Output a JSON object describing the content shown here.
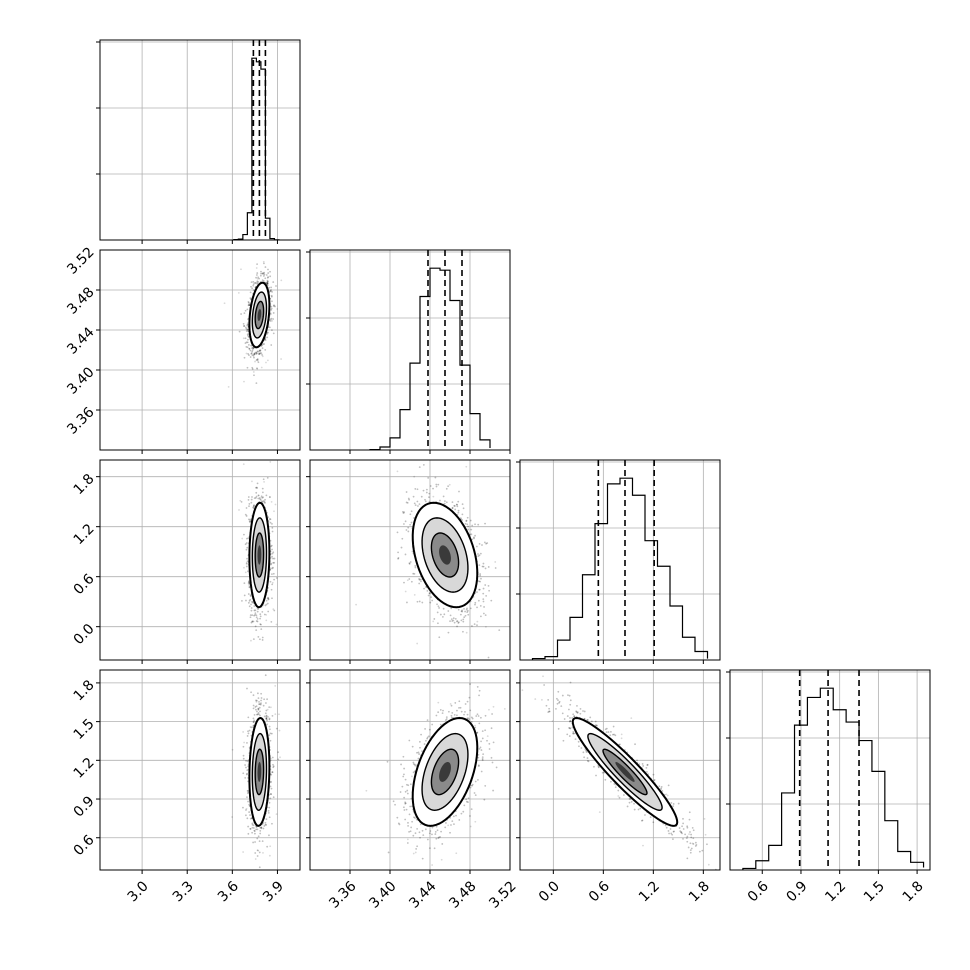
{
  "figure": {
    "type": "corner-plot",
    "panel_grid": 4,
    "colors": {
      "ink": "#000000",
      "grid": "#b0b0b0",
      "scatter": "#000000",
      "background": "#ffffff"
    }
  },
  "chart_data": [
    {
      "id": "hist-0",
      "type": "histogram",
      "xlim": [
        2.72,
        4.05
      ],
      "bins": [
        3.61,
        3.64,
        3.67,
        3.7,
        3.73,
        3.76,
        3.79,
        3.82,
        3.85,
        3.88,
        3.91
      ],
      "counts": [
        2,
        5,
        30,
        150,
        1000,
        980,
        940,
        120,
        8,
        1
      ],
      "quantile_lines": [
        3.74,
        3.78,
        3.82
      ],
      "grid": true
    },
    {
      "id": "hist-1",
      "type": "histogram",
      "xlim": [
        3.32,
        3.52
      ],
      "bins": [
        3.38,
        3.39,
        3.4,
        3.41,
        3.42,
        3.43,
        3.44,
        3.45,
        3.46,
        3.47,
        3.48,
        3.49,
        3.5
      ],
      "counts": [
        2,
        15,
        60,
        200,
        430,
        760,
        900,
        890,
        740,
        420,
        180,
        50,
        10
      ],
      "quantile_lines": [
        3.438,
        3.455,
        3.472
      ],
      "grid": true,
      "x_ticks": [
        "3.36",
        "3.40",
        "3.44",
        "3.48",
        "3.52"
      ]
    },
    {
      "id": "hist-2",
      "type": "histogram",
      "xlim": [
        -0.4,
        2.0
      ],
      "bins": [
        -0.25,
        -0.1,
        0.05,
        0.2,
        0.35,
        0.5,
        0.65,
        0.8,
        0.95,
        1.1,
        1.25,
        1.4,
        1.55,
        1.7,
        1.85
      ],
      "counts": [
        5,
        12,
        70,
        150,
        300,
        480,
        620,
        640,
        580,
        420,
        330,
        190,
        80,
        30,
        5
      ],
      "quantile_lines": [
        0.54,
        0.86,
        1.21
      ],
      "grid": true,
      "x_ticks": [
        "0.0",
        "0.6",
        "1.2",
        "1.8"
      ]
    },
    {
      "id": "hist-3",
      "type": "histogram",
      "xlim": [
        0.35,
        1.9
      ],
      "bins": [
        0.45,
        0.55,
        0.65,
        0.75,
        0.85,
        0.95,
        1.05,
        1.15,
        1.25,
        1.35,
        1.45,
        1.55,
        1.65,
        1.75,
        1.85
      ],
      "counts": [
        5,
        30,
        80,
        250,
        470,
        560,
        590,
        520,
        480,
        420,
        320,
        160,
        60,
        25,
        8
      ],
      "quantile_lines": [
        0.89,
        1.11,
        1.35
      ],
      "grid": true,
      "x_ticks": [
        "0.6",
        "0.9",
        "1.2",
        "1.5",
        "1.8"
      ]
    },
    {
      "id": "scatter-1-0",
      "type": "scatter-contour",
      "x_param": 0,
      "y_param": 1,
      "xlim": [
        2.72,
        4.05
      ],
      "ylim": [
        3.32,
        3.52
      ],
      "mean": [
        3.78,
        3.455
      ],
      "sd": [
        0.035,
        0.017
      ],
      "rho": 0.3,
      "contour_levels": 3,
      "y_ticks": [
        "3.52",
        "3.48",
        "3.44",
        "3.40",
        "3.36"
      ]
    },
    {
      "id": "scatter-2-0",
      "type": "scatter-contour",
      "x_param": 0,
      "y_param": 2,
      "xlim": [
        2.72,
        4.05
      ],
      "ylim": [
        -0.4,
        2.0
      ],
      "mean": [
        3.78,
        0.86
      ],
      "sd": [
        0.035,
        0.33
      ],
      "rho": 0.05,
      "contour_levels": 3,
      "y_ticks": [
        "1.8",
        "1.2",
        "0.6",
        "0.0"
      ]
    },
    {
      "id": "scatter-2-1",
      "type": "scatter-contour",
      "x_param": 1,
      "y_param": 2,
      "xlim": [
        3.32,
        3.52
      ],
      "ylim": [
        -0.4,
        2.0
      ],
      "mean": [
        3.455,
        0.86
      ],
      "sd": [
        0.017,
        0.33
      ],
      "rho": -0.35,
      "contour_levels": 3
    },
    {
      "id": "scatter-3-0",
      "type": "scatter-contour",
      "x_param": 0,
      "y_param": 3,
      "xlim": [
        2.72,
        4.05
      ],
      "ylim": [
        0.35,
        1.9
      ],
      "mean": [
        3.78,
        1.11
      ],
      "sd": [
        0.035,
        0.22
      ],
      "rho": 0.1,
      "contour_levels": 3,
      "y_ticks": [
        "1.8",
        "1.5",
        "1.2",
        "0.9",
        "0.6"
      ],
      "x_ticks": [
        "3.0",
        "3.3",
        "3.6",
        "3.9"
      ]
    },
    {
      "id": "scatter-3-1",
      "type": "scatter-contour",
      "x_param": 1,
      "y_param": 3,
      "xlim": [
        3.32,
        3.52
      ],
      "ylim": [
        0.35,
        1.9
      ],
      "mean": [
        3.455,
        1.11
      ],
      "sd": [
        0.017,
        0.22
      ],
      "rho": 0.45,
      "contour_levels": 3,
      "x_ticks": [
        "3.36",
        "3.40",
        "3.44",
        "3.48",
        "3.52"
      ]
    },
    {
      "id": "scatter-3-2",
      "type": "scatter-contour",
      "x_param": 2,
      "y_param": 3,
      "xlim": [
        -0.4,
        2.0
      ],
      "ylim": [
        0.35,
        1.9
      ],
      "mean": [
        0.86,
        1.11
      ],
      "sd": [
        0.33,
        0.22
      ],
      "rho": -0.93,
      "contour_levels": 3,
      "x_ticks": [
        "0.0",
        "0.6",
        "1.2",
        "1.8"
      ]
    }
  ]
}
